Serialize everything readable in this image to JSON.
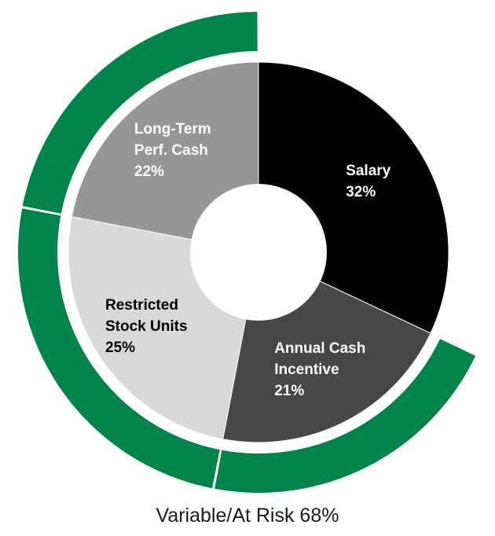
{
  "chart_data": {
    "type": "pie",
    "slices": [
      {
        "label_lines": [
          "Salary"
        ],
        "value": 32,
        "value_text": "32%",
        "color": "#000000",
        "text_color": "#ffffff"
      },
      {
        "label_lines": [
          "Annual Cash",
          "Incentive"
        ],
        "value": 21,
        "value_text": "21%",
        "color": "#474747",
        "text_color": "#ffffff"
      },
      {
        "label_lines": [
          "Restricted",
          "Stock Units"
        ],
        "value": 25,
        "value_text": "25%",
        "color": "#d9d9d9",
        "text_color": "#000000"
      },
      {
        "label_lines": [
          "Long-Term",
          "Perf. Cash"
        ],
        "value": 22,
        "value_text": "22%",
        "color": "#969696",
        "text_color": "#ffffff"
      }
    ],
    "outer_ring": {
      "label": "Variable/At Risk 68%",
      "value": 68,
      "color": "#00844a"
    }
  }
}
